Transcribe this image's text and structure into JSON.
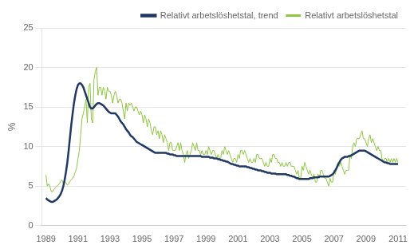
{
  "chart_data": {
    "type": "line",
    "y_label": "%",
    "xlim": [
      1988.75,
      2011.5
    ],
    "xticks": [
      1989,
      1991,
      1993,
      1995,
      1997,
      1999,
      2001,
      2003,
      2005,
      2007,
      2009,
      2011
    ],
    "ylim": [
      0,
      25
    ],
    "yticks": [
      0,
      5,
      10,
      15,
      20,
      25
    ],
    "grid": true,
    "legend": "upper right",
    "x": [
      1989.0,
      1989.0833333333333,
      1989.1666666666667,
      1989.25,
      1989.3333333333333,
      1989.4166666666667,
      1989.5,
      1989.5833333333333,
      1989.6666666666667,
      1989.75,
      1989.8333333333333,
      1989.9166666666667,
      1990.0,
      1990.0833333333333,
      1990.1666666666667,
      1990.25,
      1990.3333333333333,
      1990.4166666666667,
      1990.5,
      1990.5833333333333,
      1990.6666666666667,
      1990.75,
      1990.8333333333333,
      1990.9166666666667,
      1991.0,
      1991.0833333333333,
      1991.1666666666667,
      1991.25,
      1991.3333333333333,
      1991.4166666666667,
      1991.5,
      1991.5833333333333,
      1991.6666666666667,
      1991.75,
      1991.8333333333333,
      1991.9166666666667,
      1992.0,
      1992.0833333333333,
      1992.1666666666667,
      1992.25,
      1992.3333333333333,
      1992.4166666666667,
      1992.5,
      1992.5833333333333,
      1992.6666666666667,
      1992.75,
      1992.8333333333333,
      1992.9166666666667,
      1993.0,
      1993.0833333333333,
      1993.1666666666667,
      1993.25,
      1993.3333333333333,
      1993.4166666666667,
      1993.5,
      1993.5833333333333,
      1993.6666666666667,
      1993.75,
      1993.8333333333333,
      1993.9166666666667,
      1994.0,
      1994.0833333333333,
      1994.1666666666667,
      1994.25,
      1994.3333333333333,
      1994.4166666666667,
      1994.5,
      1994.5833333333333,
      1994.6666666666667,
      1994.75,
      1994.8333333333333,
      1994.9166666666667,
      1995.0,
      1995.0833333333333,
      1995.1666666666667,
      1995.25,
      1995.3333333333333,
      1995.4166666666667,
      1995.5,
      1995.5833333333333,
      1995.6666666666667,
      1995.75,
      1995.8333333333333,
      1995.9166666666667,
      1996.0,
      1996.0833333333333,
      1996.1666666666667,
      1996.25,
      1996.3333333333333,
      1996.4166666666667,
      1996.5,
      1996.5833333333333,
      1996.6666666666667,
      1996.75,
      1996.8333333333333,
      1996.9166666666667,
      1997.0,
      1997.0833333333333,
      1997.1666666666667,
      1997.25,
      1997.3333333333333,
      1997.4166666666667,
      1997.5,
      1997.5833333333333,
      1997.6666666666667,
      1997.75,
      1997.8333333333333,
      1997.9166666666667,
      1998.0,
      1998.0833333333333,
      1998.1666666666667,
      1998.25,
      1998.3333333333333,
      1998.4166666666667,
      1998.5,
      1998.5833333333333,
      1998.6666666666667,
      1998.75,
      1998.8333333333333,
      1998.9166666666667,
      1999.0,
      1999.0833333333333,
      1999.1666666666667,
      1999.25,
      1999.3333333333333,
      1999.4166666666667,
      1999.5,
      1999.5833333333333,
      1999.6666666666667,
      1999.75,
      1999.8333333333333,
      1999.9166666666667,
      2000.0,
      2000.0833333333333,
      2000.1666666666667,
      2000.25,
      2000.3333333333333,
      2000.4166666666667,
      2000.5,
      2000.5833333333333,
      2000.6666666666667,
      2000.75,
      2000.8333333333333,
      2000.9166666666667,
      2001.0,
      2001.0833333333333,
      2001.1666666666667,
      2001.25,
      2001.3333333333333,
      2001.4166666666667,
      2001.5,
      2001.5833333333333,
      2001.6666666666667,
      2001.75,
      2001.8333333333333,
      2001.9166666666667,
      2002.0,
      2002.0833333333333,
      2002.1666666666667,
      2002.25,
      2002.3333333333333,
      2002.4166666666667,
      2002.5,
      2002.5833333333333,
      2002.6666666666667,
      2002.75,
      2002.8333333333333,
      2002.9166666666667,
      2003.0,
      2003.0833333333333,
      2003.1666666666667,
      2003.25,
      2003.3333333333333,
      2003.4166666666667,
      2003.5,
      2003.5833333333333,
      2003.6666666666667,
      2003.75,
      2003.8333333333333,
      2003.9166666666667,
      2004.0,
      2004.0833333333333,
      2004.1666666666667,
      2004.25,
      2004.3333333333333,
      2004.4166666666667,
      2004.5,
      2004.5833333333333,
      2004.6666666666667,
      2004.75,
      2004.8333333333333,
      2004.9166666666667,
      2005.0,
      2005.0833333333333,
      2005.1666666666667,
      2005.25,
      2005.3333333333333,
      2005.4166666666667,
      2005.5,
      2005.5833333333333,
      2005.6666666666667,
      2005.75,
      2005.8333333333333,
      2005.9166666666667,
      2006.0,
      2006.0833333333333,
      2006.1666666666667,
      2006.25,
      2006.3333333333333,
      2006.4166666666667,
      2006.5,
      2006.5833333333333,
      2006.6666666666667,
      2006.75,
      2006.8333333333333,
      2006.9166666666667,
      2007.0,
      2007.0833333333333,
      2007.1666666666667,
      2007.25,
      2007.3333333333333,
      2007.4166666666667,
      2007.5,
      2007.5833333333333,
      2007.6666666666667,
      2007.75,
      2007.8333333333333,
      2007.9166666666667,
      2008.0,
      2008.0833333333333,
      2008.1666666666667,
      2008.25,
      2008.3333333333333,
      2008.4166666666667,
      2008.5,
      2008.5833333333333,
      2008.6666666666667,
      2008.75,
      2008.8333333333333,
      2008.9166666666667,
      2009.0,
      2009.0833333333333,
      2009.1666666666667,
      2009.25,
      2009.3333333333333,
      2009.4166666666667,
      2009.5,
      2009.5833333333333,
      2009.6666666666667,
      2009.75,
      2009.8333333333333,
      2009.9166666666667,
      2010.0,
      2010.0833333333333,
      2010.1666666666667,
      2010.25,
      2010.3333333333333,
      2010.4166666666667,
      2010.5,
      2010.5833333333333,
      2010.6666666666667,
      2010.75,
      2010.8333333333333,
      2010.9166666666667,
      2011.0
    ],
    "series": [
      {
        "name": "Relativt arbetslöshetstal",
        "color": "#8dc63f",
        "values": [
          6.4,
          5.0,
          5.3,
          4.9,
          4.3,
          4.3,
          4.6,
          4.8,
          5.0,
          5.1,
          5.3,
          5.6,
          5.8,
          5.3,
          5.6,
          5.4,
          5.1,
          5.3,
          5.6,
          5.8,
          6.0,
          6.3,
          6.8,
          7.3,
          8.5,
          9.5,
          11.5,
          13.5,
          14.2,
          15.0,
          16.0,
          13.0,
          17.5,
          18.0,
          13.5,
          13.0,
          18.5,
          19.5,
          20.0,
          16.5,
          17.5,
          17.5,
          16.5,
          17.5,
          17.0,
          16.0,
          17.5,
          17.0,
          17.0,
          16.5,
          15.5,
          16.5,
          17.0,
          16.5,
          15.5,
          16.0,
          16.0,
          15.5,
          14.5,
          13.5,
          15.5,
          14.5,
          15.5,
          15.2,
          15.5,
          15.0,
          14.5,
          15.0,
          15.0,
          14.5,
          14.0,
          14.5,
          14.0,
          13.0,
          14.0,
          13.5,
          12.5,
          13.5,
          13.0,
          12.0,
          11.5,
          12.5,
          12.5,
          11.5,
          12.0,
          11.0,
          12.0,
          11.5,
          10.5,
          11.5,
          11.0,
          10.5,
          9.5,
          10.5,
          10.5,
          9.5,
          9.5,
          9.5,
          10.0,
          10.5,
          9.5,
          10.5,
          9.5,
          9.0,
          8.0,
          9.0,
          9.5,
          8.5,
          9.0,
          9.5,
          10.5,
          10.0,
          9.5,
          10.5,
          9.5,
          9.5,
          9.0,
          9.5,
          9.0,
          9.0,
          9.5,
          9.0,
          10.0,
          9.5,
          9.0,
          9.5,
          9.5,
          9.0,
          8.5,
          9.0,
          8.5,
          8.5,
          9.5,
          9.0,
          10.0,
          9.5,
          9.0,
          9.5,
          9.0,
          8.5,
          8.0,
          8.5,
          8.5,
          8.0,
          9.0,
          8.5,
          9.5,
          9.5,
          9.0,
          9.5,
          9.0,
          8.5,
          8.0,
          8.5,
          8.0,
          8.0,
          8.5,
          8.0,
          9.0,
          9.0,
          8.5,
          8.5,
          8.5,
          8.0,
          7.5,
          8.0,
          7.5,
          7.5,
          8.5,
          8.0,
          9.0,
          9.0,
          8.5,
          8.5,
          8.0,
          8.0,
          7.5,
          8.0,
          7.5,
          7.5,
          8.0,
          7.5,
          8.0,
          8.0,
          7.5,
          7.5,
          7.5,
          7.0,
          6.5,
          7.0,
          6.0,
          6.0,
          7.5,
          7.0,
          8.0,
          7.5,
          7.0,
          6.5,
          7.0,
          6.5,
          6.0,
          6.5,
          5.5,
          5.5,
          6.5,
          6.0,
          7.0,
          7.0,
          6.5,
          6.0,
          6.0,
          5.5,
          5.0,
          6.0,
          5.5,
          5.5,
          7.0,
          6.5,
          7.5,
          8.0,
          7.5,
          8.0,
          7.5,
          7.0,
          6.5,
          7.0,
          7.0,
          7.0,
          9.0,
          8.5,
          10.0,
          10.5,
          10.0,
          11.0,
          11.0,
          11.0,
          11.5,
          12.0,
          11.0,
          11.0,
          10.5,
          10.0,
          11.0,
          11.5,
          10.5,
          11.0,
          10.5,
          10.0,
          9.5,
          10.0,
          9.5,
          9.5,
          8.5,
          8.0,
          8.5,
          8.5,
          8.0,
          8.5,
          8.0,
          8.5,
          8.0,
          8.5,
          8.0,
          8.5,
          8.0
        ]
      },
      {
        "name": "Relativt arbetslöshetstal, trend",
        "color": "#1f3864",
        "values": [
          3.5,
          3.3,
          3.2,
          3.1,
          3.0,
          3.0,
          3.1,
          3.2,
          3.3,
          3.5,
          3.7,
          4.0,
          4.4,
          5.0,
          5.8,
          6.8,
          8.0,
          9.5,
          11.2,
          12.8,
          14.2,
          15.5,
          16.5,
          17.3,
          17.8,
          18.0,
          18.0,
          17.8,
          17.5,
          17.0,
          16.5,
          16.0,
          15.5,
          15.0,
          14.8,
          14.8,
          15.0,
          15.2,
          15.4,
          15.5,
          15.5,
          15.4,
          15.3,
          15.2,
          15.0,
          14.8,
          14.6,
          14.4,
          14.3,
          14.2,
          14.2,
          14.2,
          14.2,
          14.0,
          13.8,
          13.5,
          13.2,
          13.0,
          12.8,
          12.5,
          12.2,
          12.0,
          11.8,
          11.5,
          11.3,
          11.2,
          11.0,
          10.8,
          10.6,
          10.5,
          10.4,
          10.3,
          10.2,
          10.1,
          10.0,
          9.9,
          9.8,
          9.7,
          9.6,
          9.5,
          9.4,
          9.3,
          9.2,
          9.2,
          9.2,
          9.2,
          9.2,
          9.2,
          9.2,
          9.2,
          9.2,
          9.1,
          9.1,
          9.0,
          9.0,
          9.0,
          8.9,
          8.9,
          8.8,
          8.8,
          8.8,
          8.8,
          8.8,
          8.8,
          8.8,
          8.8,
          8.8,
          8.8,
          8.8,
          8.8,
          8.8,
          8.8,
          8.8,
          8.8,
          8.8,
          8.8,
          8.8,
          8.7,
          8.7,
          8.7,
          8.7,
          8.7,
          8.7,
          8.6,
          8.6,
          8.6,
          8.5,
          8.5,
          8.5,
          8.4,
          8.4,
          8.3,
          8.3,
          8.2,
          8.2,
          8.1,
          8.1,
          8.0,
          7.9,
          7.8,
          7.8,
          7.7,
          7.7,
          7.6,
          7.6,
          7.5,
          7.5,
          7.5,
          7.5,
          7.5,
          7.5,
          7.4,
          7.4,
          7.3,
          7.3,
          7.2,
          7.2,
          7.1,
          7.1,
          7.0,
          7.0,
          7.0,
          6.9,
          6.9,
          6.8,
          6.8,
          6.7,
          6.7,
          6.7,
          6.6,
          6.6,
          6.6,
          6.6,
          6.5,
          6.5,
          6.5,
          6.5,
          6.5,
          6.5,
          6.5,
          6.5,
          6.4,
          6.4,
          6.3,
          6.3,
          6.2,
          6.2,
          6.1,
          6.0,
          6.0,
          5.9,
          5.9,
          5.9,
          5.9,
          5.9,
          5.9,
          5.9,
          5.9,
          6.0,
          6.0,
          6.0,
          6.1,
          6.1,
          6.1,
          6.1,
          6.2,
          6.2,
          6.2,
          6.2,
          6.2,
          6.2,
          6.2,
          6.2,
          6.3,
          6.4,
          6.5,
          6.7,
          7.0,
          7.3,
          7.7,
          8.0,
          8.3,
          8.5,
          8.6,
          8.7,
          8.7,
          8.7,
          8.8,
          8.8,
          8.9,
          9.0,
          9.1,
          9.2,
          9.3,
          9.4,
          9.5,
          9.5,
          9.5,
          9.5,
          9.5,
          9.4,
          9.3,
          9.2,
          9.1,
          9.0,
          8.9,
          8.8,
          8.7,
          8.6,
          8.5,
          8.4,
          8.3,
          8.2,
          8.1,
          8.0,
          8.0,
          7.9,
          7.9,
          7.8,
          7.8,
          7.8,
          7.8,
          7.8,
          7.8,
          7.8
        ]
      }
    ]
  }
}
